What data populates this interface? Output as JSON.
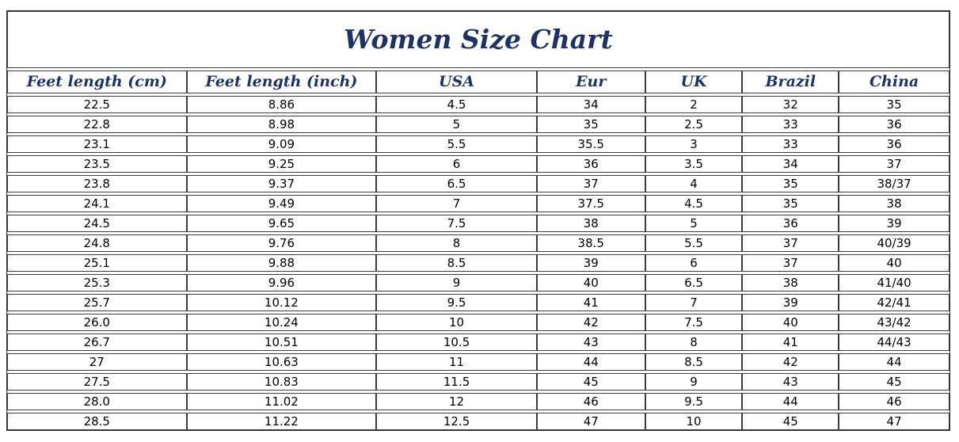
{
  "title": "Women Size Chart",
  "colors": {
    "heading_text": "#1f3362",
    "body_text": "#000000",
    "border": "#3c3c3c",
    "background": "#ffffff"
  },
  "table": {
    "columns": [
      "Feet length (cm)",
      "Feet length (inch)",
      "USA",
      "Eur",
      "UK",
      "Brazil",
      "China"
    ],
    "column_widths_pct": [
      19.04,
      20.14,
      17.03,
      11.49,
      10.32,
      10.24,
      11.74
    ],
    "rows": [
      [
        "22.5",
        "8.86",
        "4.5",
        "34",
        "2",
        "32",
        "35"
      ],
      [
        "22.8",
        "8.98",
        "5",
        "35",
        "2.5",
        "33",
        "36"
      ],
      [
        "23.1",
        "9.09",
        "5.5",
        "35.5",
        "3",
        "33",
        "36"
      ],
      [
        "23.5",
        "9.25",
        "6",
        "36",
        "3.5",
        "34",
        "37"
      ],
      [
        "23.8",
        "9.37",
        "6.5",
        "37",
        "4",
        "35",
        "38/37"
      ],
      [
        "24.1",
        "9.49",
        "7",
        "37.5",
        "4.5",
        "35",
        "38"
      ],
      [
        "24.5",
        "9.65",
        "7.5",
        "38",
        "5",
        "36",
        "39"
      ],
      [
        "24.8",
        "9.76",
        "8",
        "38.5",
        "5.5",
        "37",
        "40/39"
      ],
      [
        "25.1",
        "9.88",
        "8.5",
        "39",
        "6",
        "37",
        "40"
      ],
      [
        "25.3",
        "9.96",
        "9",
        "40",
        "6.5",
        "38",
        "41/40"
      ],
      [
        "25.7",
        "10.12",
        "9.5",
        "41",
        "7",
        "39",
        "42/41"
      ],
      [
        "26.0",
        "10.24",
        "10",
        "42",
        "7.5",
        "40",
        "43/42"
      ],
      [
        "26.7",
        "10.51",
        "10.5",
        "43",
        "8",
        "41",
        "44/43"
      ],
      [
        "27",
        "10.63",
        "11",
        "44",
        "8.5",
        "42",
        "44"
      ],
      [
        "27.5",
        "10.83",
        "11.5",
        "45",
        "9",
        "43",
        "45"
      ],
      [
        "28.0",
        "11.02",
        "12",
        "46",
        "9.5",
        "44",
        "46"
      ],
      [
        "28.5",
        "11.22",
        "12.5",
        "47",
        "10",
        "45",
        "47"
      ]
    ]
  }
}
